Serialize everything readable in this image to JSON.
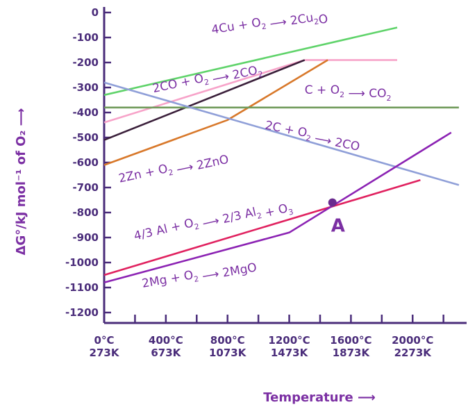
{
  "chart_data": {
    "type": "line",
    "ylabel": "ΔG°/kJ mol⁻¹ of O₂",
    "xlabel": "Temperature",
    "ylim": [
      -1250,
      0
    ],
    "xlim": [
      0,
      2350
    ],
    "y_ticks": [
      0,
      -100,
      -200,
      -300,
      -400,
      -500,
      -600,
      -700,
      -800,
      -900,
      -1000,
      -1100,
      -1200
    ],
    "y_tick_labels": [
      "0",
      "-100",
      "-200",
      "-300",
      "-400",
      "-500",
      "-600",
      "-700",
      "-800",
      "-900",
      "-1000",
      "-1100",
      "-1200"
    ],
    "x_ticks": [
      0,
      400,
      800,
      1200,
      1600,
      2000
    ],
    "x_tick_labels_c": [
      "0°C",
      "400°C",
      "800°C",
      "1200°C",
      "1600°C",
      "2000°C"
    ],
    "x_tick_labels_k": [
      "273K",
      "673K",
      "1073K",
      "1473K",
      "1873K",
      "2273K"
    ],
    "series": [
      {
        "id": "cu",
        "color": "#5fd36a",
        "points": [
          [
            0,
            -330
          ],
          [
            1900,
            -60
          ]
        ]
      },
      {
        "id": "co2co",
        "color": "#f7a3c9",
        "points": [
          [
            0,
            -440
          ],
          [
            1300,
            -190
          ]
        ]
      },
      {
        "id": "pinkflat",
        "color": "#f7a3c9",
        "points": [
          [
            1300,
            -190
          ],
          [
            1900,
            -190
          ]
        ]
      },
      {
        "id": "zn",
        "color": "#d8782a",
        "points": [
          [
            0,
            -610
          ],
          [
            800,
            -430
          ],
          [
            1450,
            -190
          ]
        ]
      },
      {
        "id": "black",
        "color": "#3a1f3a",
        "points": [
          [
            0,
            -510
          ],
          [
            1300,
            -190
          ]
        ]
      },
      {
        "id": "c_co2",
        "color": "#6f9a5a",
        "points": [
          [
            0,
            -380
          ],
          [
            2300,
            -380
          ]
        ]
      },
      {
        "id": "c_co",
        "color": "#8f9fd8",
        "points": [
          [
            0,
            -280
          ],
          [
            2300,
            -690
          ]
        ]
      },
      {
        "id": "al",
        "color": "#e0215f",
        "points": [
          [
            0,
            -1050
          ],
          [
            2050,
            -670
          ]
        ]
      },
      {
        "id": "mg",
        "color": "#8b22b3",
        "points": [
          [
            0,
            -1080
          ],
          [
            1200,
            -880
          ],
          [
            2250,
            -480
          ]
        ]
      }
    ],
    "annotations": [
      {
        "id": "cu",
        "prefix": "4Cu + O",
        "sub": "2",
        "arrow": " ⟶ ",
        "tail": "2Cu",
        "tail_sub": "2",
        "tail_end": "O",
        "x": 700,
        "y": -85,
        "rot": -9
      },
      {
        "id": "co2co",
        "prefix": "2CO + O",
        "sub": "2",
        "arrow": " ⟶ ",
        "tail": "2CO",
        "tail_sub": "2",
        "tail_end": "",
        "x": 320,
        "y": -320,
        "rot": -12
      },
      {
        "id": "c_co2",
        "prefix": "C + O",
        "sub": "2",
        "arrow": " ⟶ ",
        "tail": "CO",
        "tail_sub": "2",
        "tail_end": "",
        "x": 1300,
        "y": -325,
        "rot": 0
      },
      {
        "id": "c_co",
        "prefix": "2C + O",
        "sub": "2",
        "arrow": " ⟶ ",
        "tail": "2CO",
        "tail_sub": "",
        "tail_end": "",
        "x": 1040,
        "y": -465,
        "rot": 11
      },
      {
        "id": "zn",
        "prefix": "2Zn + O",
        "sub": "2",
        "arrow": " ⟶ ",
        "tail": "2ZnO",
        "tail_sub": "",
        "tail_end": "",
        "x": 100,
        "y": -680,
        "rot": -12
      },
      {
        "id": "al",
        "prefix": "4/3 Al + O",
        "sub": "2",
        "arrow": " ⟶ ",
        "tail": "2/3 Al",
        "tail_sub": "2",
        "tail_end": " + O",
        "tail_end_sub": "3",
        "x": 200,
        "y": -910,
        "rot": -13
      },
      {
        "id": "mg",
        "prefix": "2Mg + O",
        "sub": "2",
        "arrow": " ⟶ ",
        "tail": "2MgO",
        "tail_sub": "",
        "tail_end": "",
        "x": 250,
        "y": -1100,
        "rot": -10
      }
    ],
    "point_label": "A",
    "point": [
      1480,
      -760
    ],
    "grid": false
  }
}
